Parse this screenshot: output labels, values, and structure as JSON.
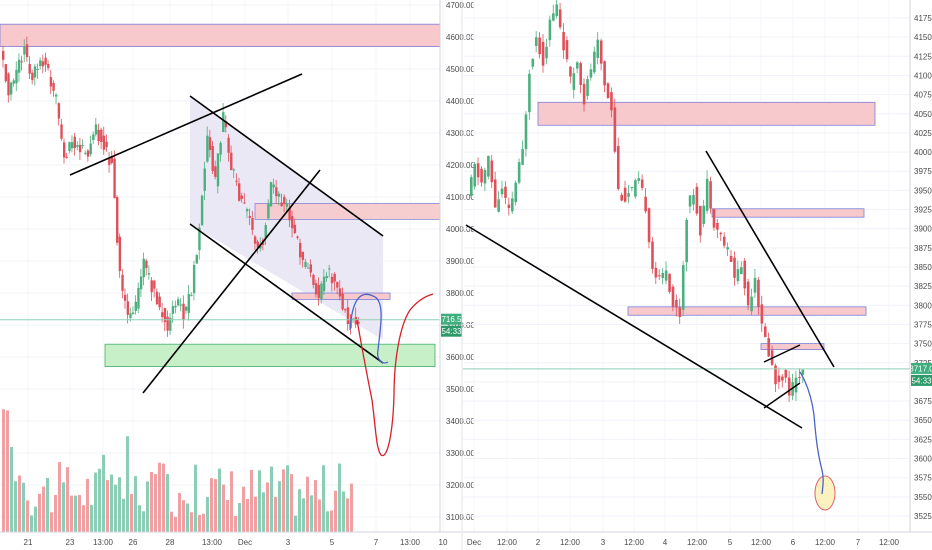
{
  "colors": {
    "up": "#4caf7e",
    "down": "#e0505a",
    "vol_up": "#8ccdb5",
    "vol_down": "#f0a0a2",
    "zone_red_fill": "#f7c9cc",
    "zone_red_edge": "#7a7fd8",
    "zone_green_fill": "#c8f0c8",
    "zone_green_edge": "#43b06a",
    "channel_fill": "#e8e4f4",
    "price_line": "#8fd0b8",
    "trend_line": "#000000",
    "drawing_blue": "#4a64c8",
    "drawing_red": "#d8202a",
    "target_circle_fill": "#fbf2c0",
    "target_circle_edge": "#e06070",
    "price_tag": "#3eaf7c",
    "countdown_tag": "#2e9a6a",
    "axis_text": "#4a4a4a",
    "divider": "#e0e3eb"
  },
  "left_chart": {
    "price_axis": {
      "ticks": [
        "4700.00",
        "4600.00",
        "4500.00",
        "4400.00",
        "4300.00",
        "4200.00",
        "4100.00",
        "4000.00",
        "3900.00",
        "3800.00",
        "3700.00",
        "3600.00",
        "3500.00",
        "3400.00",
        "3300.00",
        "3200.00",
        "3100.00"
      ],
      "last_price": "3716.58",
      "countdown": "54:33"
    },
    "time_axis": {
      "labels": [
        "21",
        "23",
        "13:00",
        "26",
        "28",
        "13:00",
        "Dec",
        "3",
        "5",
        "7",
        "13:00",
        "10"
      ]
    }
  },
  "right_chart": {
    "price_axis": {
      "ticks": [
        "4175.00",
        "4150.00",
        "4125.00",
        "4100.00",
        "4075.00",
        "4050.00",
        "4025.00",
        "4000.00",
        "3975.00",
        "3950.00",
        "3925.00",
        "3900.00",
        "3875.00",
        "3850.00",
        "3825.00",
        "3800.00",
        "3775.00",
        "3750.00",
        "3725.00",
        "3700.00",
        "3675.00",
        "3650.00",
        "3625.00",
        "3600.00",
        "3575.00",
        "3550.00",
        "3525.00"
      ],
      "last_price": "3717.0",
      "countdown": "54:33"
    },
    "time_axis": {
      "labels": [
        "Dec",
        "12:00",
        "2",
        "12:00",
        "3",
        "12:00",
        "4",
        "12:00",
        "5",
        "12:00",
        "6",
        "12:00",
        "7",
        "12:00"
      ]
    }
  },
  "chart_data": [
    {
      "type": "candlestick",
      "title": "",
      "xlabel": "",
      "ylabel": "",
      "ylim": [
        3050,
        4720
      ],
      "y_ticks": [
        4700,
        4600,
        4500,
        4400,
        4300,
        4200,
        4100,
        4000,
        3900,
        3800,
        3700,
        3600,
        3500,
        3400,
        3300,
        3200,
        3100
      ],
      "x_tick_labels": [
        "21",
        "23",
        "13:00",
        "26",
        "28",
        "13:00",
        "Dec",
        "3",
        "5",
        "7",
        "13:00",
        "10"
      ],
      "last_price": 3716.58,
      "ohlc_close_path": [
        4560,
        4420,
        4490,
        4560,
        4470,
        4540,
        4490,
        4400,
        4230,
        4270,
        4250,
        4240,
        4310,
        4260,
        4200,
        3850,
        3720,
        3760,
        3900,
        3820,
        3750,
        3700,
        3780,
        3730,
        3810,
        4000,
        4300,
        4150,
        4350,
        4200,
        4100,
        4050,
        3950,
        3960,
        4150,
        4100,
        4060,
        3980,
        3900,
        3870,
        3780,
        3870,
        3840,
        3760,
        3700,
        3720
      ],
      "zones": [
        {
          "kind": "resistance",
          "from": 4570,
          "to": 4640
        },
        {
          "kind": "resistance",
          "from": 4030,
          "to": 4080
        },
        {
          "kind": "resistance",
          "from": 3780,
          "to": 3800
        },
        {
          "kind": "support",
          "from": 3570,
          "to": 3640
        }
      ],
      "trendlines": "descending channel with ascending support lines",
      "projection": "drop toward 3300 then rebound toward 3780",
      "volume": "present"
    },
    {
      "type": "candlestick",
      "title": "",
      "xlabel": "",
      "ylabel": "",
      "ylim": [
        3510,
        4195
      ],
      "y_ticks": [
        4175,
        4150,
        4125,
        4100,
        4075,
        4050,
        4025,
        4000,
        3975,
        3950,
        3925,
        3900,
        3875,
        3850,
        3825,
        3800,
        3775,
        3750,
        3725,
        3700,
        3675,
        3650,
        3625,
        3600,
        3575,
        3550,
        3525
      ],
      "x_tick_labels": [
        "Dec",
        "12:00",
        "2",
        "12:00",
        "3",
        "12:00",
        "4",
        "12:00",
        "5",
        "12:00",
        "6",
        "12:00",
        "7",
        "12:00"
      ],
      "last_price": 3717.0,
      "ohlc_close_path": [
        3940,
        3980,
        3960,
        3990,
        3930,
        3950,
        3920,
        3960,
        4000,
        4110,
        4150,
        4120,
        4170,
        4190,
        4140,
        4090,
        4120,
        4070,
        4110,
        4140,
        4090,
        4060,
        3950,
        3940,
        3950,
        3960,
        3930,
        3850,
        3830,
        3850,
        3800,
        3790,
        3920,
        3950,
        3900,
        3960,
        3910,
        3890,
        3870,
        3840,
        3850,
        3800,
        3840,
        3770,
        3740,
        3700,
        3710,
        3690,
        3700,
        3717
      ],
      "zones": [
        {
          "kind": "resistance",
          "from": 4035,
          "to": 4065
        },
        {
          "kind": "resistance",
          "from": 3915,
          "to": 3926
        },
        {
          "kind": "resistance",
          "from": 3787,
          "to": 3798
        },
        {
          "kind": "resistance",
          "from": 3744,
          "to": 3750
        }
      ],
      "trendlines": "descending triangle",
      "projection": "drop toward 3560",
      "volume": "absent"
    }
  ]
}
